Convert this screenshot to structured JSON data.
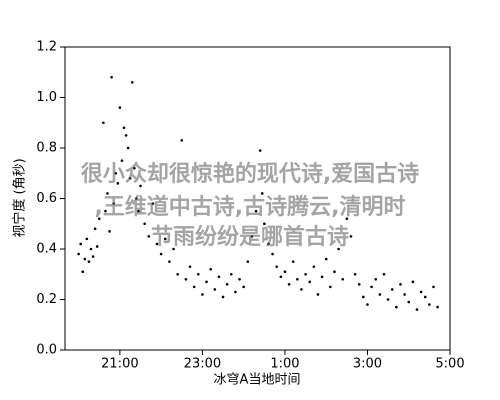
{
  "chart_data": {
    "type": "scatter",
    "xlabel": "冰穹A当地时间",
    "ylabel": "视宁度 (角秒)",
    "color": "#000000",
    "x": [
      20.0,
      20.05,
      20.1,
      20.15,
      20.2,
      20.25,
      20.3,
      20.35,
      20.4,
      20.45,
      20.5,
      20.6,
      20.65,
      20.7,
      20.75,
      20.8,
      20.85,
      20.9,
      20.95,
      21.0,
      21.05,
      21.1,
      21.15,
      21.2,
      21.25,
      21.3,
      21.35,
      21.4,
      21.45,
      21.5,
      21.6,
      21.7,
      21.8,
      21.9,
      22.0,
      22.1,
      22.2,
      22.3,
      22.4,
      22.5,
      22.6,
      22.7,
      22.8,
      22.9,
      23.0,
      23.1,
      23.2,
      23.3,
      23.4,
      23.5,
      23.6,
      23.7,
      23.8,
      23.9,
      24.0,
      24.1,
      24.2,
      24.3,
      24.4,
      24.45,
      24.5,
      24.6,
      24.7,
      24.8,
      24.9,
      25.0,
      25.1,
      25.2,
      25.3,
      25.4,
      25.5,
      25.6,
      25.7,
      25.8,
      25.9,
      26.0,
      26.1,
      26.2,
      26.3,
      26.4,
      26.5,
      26.6,
      26.7,
      26.8,
      26.9,
      27.0,
      27.1,
      27.2,
      27.3,
      27.4,
      27.5,
      27.6,
      27.7,
      27.8,
      27.9,
      28.0,
      28.1,
      28.2,
      28.3,
      28.4,
      28.5,
      28.6,
      28.7
    ],
    "values": [
      0.38,
      0.42,
      0.31,
      0.36,
      0.44,
      0.35,
      0.4,
      0.37,
      0.48,
      0.41,
      0.52,
      0.9,
      0.55,
      0.62,
      0.47,
      1.08,
      0.58,
      0.7,
      0.66,
      0.96,
      0.75,
      0.88,
      0.85,
      0.8,
      0.68,
      1.06,
      0.72,
      0.6,
      0.55,
      0.65,
      0.5,
      0.45,
      0.58,
      0.42,
      0.38,
      0.44,
      0.35,
      0.4,
      0.3,
      0.83,
      0.28,
      0.33,
      0.25,
      0.3,
      0.22,
      0.27,
      0.32,
      0.24,
      0.29,
      0.21,
      0.26,
      0.3,
      0.23,
      0.28,
      0.25,
      0.35,
      0.45,
      0.55,
      0.79,
      0.62,
      0.5,
      0.42,
      0.38,
      0.33,
      0.29,
      0.31,
      0.26,
      0.35,
      0.28,
      0.24,
      0.3,
      0.27,
      0.33,
      0.22,
      0.29,
      0.36,
      0.25,
      0.31,
      0.4,
      0.28,
      0.52,
      0.45,
      0.3,
      0.26,
      0.21,
      0.18,
      0.25,
      0.28,
      0.22,
      0.3,
      0.2,
      0.24,
      0.17,
      0.26,
      0.22,
      0.19,
      0.27,
      0.16,
      0.23,
      0.21,
      0.18,
      0.25,
      0.17
    ],
    "xlim": [
      19.67,
      29
    ],
    "xticks": [
      {
        "value": 21,
        "label": "21:00"
      },
      {
        "value": 23,
        "label": "23:00"
      },
      {
        "value": 25,
        "label": "1:00"
      },
      {
        "value": 27,
        "label": "3:00"
      },
      {
        "value": 29,
        "label": "5:00"
      }
    ],
    "ylim": [
      0,
      1.2
    ],
    "yticks": [
      {
        "value": 0,
        "label": "0.0"
      },
      0.2,
      0.4,
      0.6,
      0.8,
      {
        "value": 1,
        "label": "1.0"
      },
      1.2
    ],
    "grid": false
  },
  "watermark": [
    "很小众却很惊艳的现代诗,爱国古诗",
    ",王维道中古诗,古诗腾云,清明时",
    "节雨纷纷是哪首古诗"
  ]
}
